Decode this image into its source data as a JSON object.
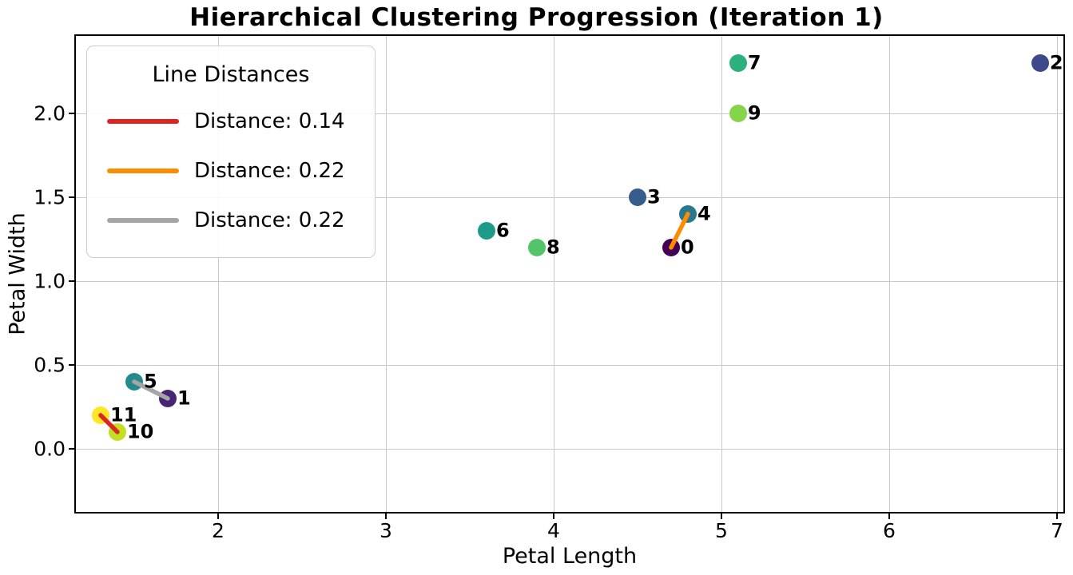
{
  "chart_data": {
    "type": "scatter",
    "title": "Hierarchical Clustering Progression (Iteration 1)",
    "xlabel": "Petal Length",
    "ylabel": "Petal Width",
    "xlim": [
      1.143,
      7.048
    ],
    "ylim": [
      -0.386,
      2.471
    ],
    "xticks": {
      "values": [
        2,
        3,
        4,
        5,
        6,
        7
      ],
      "labels": [
        "2",
        "3",
        "4",
        "5",
        "6",
        "7"
      ]
    },
    "yticks": {
      "values": [
        0.0,
        0.5,
        1.0,
        1.5,
        2.0
      ],
      "labels": [
        "0.0",
        "0.5",
        "1.0",
        "1.5",
        "2.0"
      ]
    },
    "grid": true,
    "grid_color": "#c9c9c9",
    "points": [
      {
        "label": "0",
        "x": 4.7,
        "y": 1.2,
        "color": "#440154"
      },
      {
        "label": "1",
        "x": 1.7,
        "y": 0.3,
        "color": "#482475"
      },
      {
        "label": "2",
        "x": 6.9,
        "y": 2.3,
        "color": "#3f4889"
      },
      {
        "label": "3",
        "x": 4.5,
        "y": 1.5,
        "color": "#355e8d"
      },
      {
        "label": "4",
        "x": 4.8,
        "y": 1.4,
        "color": "#2a788e"
      },
      {
        "label": "5",
        "x": 1.5,
        "y": 0.4,
        "color": "#238a8d"
      },
      {
        "label": "6",
        "x": 3.6,
        "y": 1.3,
        "color": "#1f9a8a"
      },
      {
        "label": "7",
        "x": 5.1,
        "y": 2.3,
        "color": "#2cb17e"
      },
      {
        "label": "8",
        "x": 3.9,
        "y": 1.2,
        "color": "#52c569"
      },
      {
        "label": "9",
        "x": 5.1,
        "y": 2.0,
        "color": "#86d549"
      },
      {
        "label": "10",
        "x": 1.4,
        "y": 0.1,
        "color": "#c2df23"
      },
      {
        "label": "11",
        "x": 1.3,
        "y": 0.2,
        "color": "#fde725"
      }
    ],
    "lines": [
      {
        "from": "11",
        "to": "10",
        "color": "#dc2626",
        "label": "Distance: 0.14"
      },
      {
        "from": "0",
        "to": "4",
        "color": "#ff8c00",
        "label": "Distance: 0.22"
      },
      {
        "from": "5",
        "to": "1",
        "color": "#a5a5a5",
        "label": "Distance: 0.22"
      }
    ],
    "legend": {
      "title": "Line Distances",
      "entries": [
        {
          "label": "Distance: 0.14",
          "color": "#dc2626"
        },
        {
          "label": "Distance: 0.22",
          "color": "#ff8c00"
        },
        {
          "label": "Distance: 0.22",
          "color": "#a5a5a5"
        }
      ]
    }
  }
}
